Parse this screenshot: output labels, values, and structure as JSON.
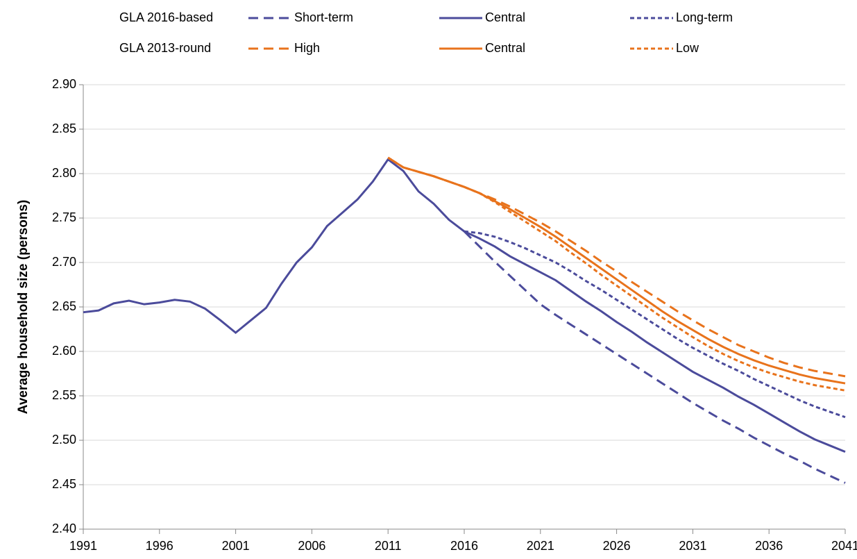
{
  "chart_data": {
    "type": "line",
    "y_label": "Average household size (persons)",
    "legend_groups": [
      "GLA 2016-based",
      "GLA 2013-round"
    ],
    "x": [
      1991,
      1992,
      1993,
      1994,
      1995,
      1996,
      1997,
      1998,
      1999,
      2000,
      2001,
      2002,
      2003,
      2004,
      2005,
      2006,
      2007,
      2008,
      2009,
      2010,
      2011,
      2012,
      2013,
      2014,
      2015,
      2016,
      2017,
      2018,
      2019,
      2020,
      2021,
      2022,
      2023,
      2024,
      2025,
      2026,
      2027,
      2028,
      2029,
      2030,
      2031,
      2032,
      2033,
      2034,
      2035,
      2036,
      2037,
      2038,
      2039,
      2040,
      2041
    ],
    "xlim": [
      1991,
      2041
    ],
    "xticks": [
      1991,
      1996,
      2001,
      2006,
      2011,
      2016,
      2021,
      2026,
      2031,
      2036,
      2041
    ],
    "ylim": [
      2.4,
      2.9
    ],
    "yticks": [
      {
        "value": 2.4,
        "label": "2.40"
      },
      {
        "value": 2.45,
        "label": "2.45"
      },
      {
        "value": 2.5,
        "label": "2.50"
      },
      {
        "value": 2.55,
        "label": "2.55"
      },
      {
        "value": 2.6,
        "label": "2.60"
      },
      {
        "value": 2.65,
        "label": "2.65"
      },
      {
        "value": 2.7,
        "label": "2.70"
      },
      {
        "value": 2.75,
        "label": "2.75"
      },
      {
        "value": 2.8,
        "label": "2.80"
      },
      {
        "value": 2.85,
        "label": "2.85"
      },
      {
        "value": 2.9,
        "label": "2.90"
      }
    ],
    "grid": true,
    "series": [
      {
        "name": "Short-term",
        "group": 0,
        "color": "#4b4b9b",
        "dash": "long",
        "values": [
          null,
          null,
          null,
          null,
          null,
          null,
          null,
          null,
          null,
          null,
          null,
          null,
          null,
          null,
          null,
          null,
          null,
          null,
          null,
          null,
          null,
          null,
          null,
          null,
          null,
          2.735,
          2.718,
          2.701,
          2.685,
          2.669,
          2.653,
          2.641,
          2.63,
          2.619,
          2.608,
          2.597,
          2.586,
          2.575,
          2.564,
          2.553,
          2.542,
          2.532,
          2.522,
          2.513,
          2.503,
          2.494,
          2.485,
          2.477,
          2.468,
          2.46,
          2.452
        ]
      },
      {
        "name": "Central",
        "group": 0,
        "color": "#4b4b9b",
        "dash": "solid",
        "values": [
          2.644,
          2.646,
          2.654,
          2.657,
          2.653,
          2.655,
          2.658,
          2.656,
          2.648,
          2.635,
          2.621,
          2.635,
          2.649,
          2.676,
          2.7,
          2.717,
          2.741,
          2.756,
          2.771,
          2.791,
          2.816,
          2.803,
          2.78,
          2.766,
          2.748,
          2.735,
          2.727,
          2.718,
          2.707,
          2.698,
          2.689,
          2.68,
          2.668,
          2.656,
          2.645,
          2.633,
          2.622,
          2.61,
          2.599,
          2.588,
          2.577,
          2.568,
          2.559,
          2.549,
          2.54,
          2.53,
          2.52,
          2.51,
          2.501,
          2.494,
          2.487
        ]
      },
      {
        "name": "Long-term",
        "group": 0,
        "color": "#4b4b9b",
        "dash": "short",
        "values": [
          null,
          null,
          null,
          null,
          null,
          null,
          null,
          null,
          null,
          null,
          null,
          null,
          null,
          null,
          null,
          null,
          null,
          null,
          null,
          null,
          null,
          null,
          null,
          null,
          null,
          2.735,
          2.733,
          2.729,
          2.723,
          2.716,
          2.708,
          2.7,
          2.69,
          2.679,
          2.669,
          2.658,
          2.647,
          2.636,
          2.625,
          2.614,
          2.604,
          2.595,
          2.586,
          2.578,
          2.569,
          2.561,
          2.553,
          2.545,
          2.538,
          2.532,
          2.526
        ]
      },
      {
        "name": "High",
        "group": 1,
        "color": "#e8731c",
        "dash": "long",
        "values": [
          null,
          null,
          null,
          null,
          null,
          null,
          null,
          null,
          null,
          null,
          null,
          null,
          null,
          null,
          null,
          null,
          null,
          null,
          null,
          null,
          2.818,
          2.807,
          2.802,
          2.797,
          2.791,
          2.785,
          2.778,
          2.771,
          2.763,
          2.754,
          2.745,
          2.735,
          2.724,
          2.713,
          2.701,
          2.69,
          2.678,
          2.667,
          2.656,
          2.645,
          2.635,
          2.625,
          2.616,
          2.607,
          2.6,
          2.593,
          2.587,
          2.582,
          2.578,
          2.575,
          2.572
        ]
      },
      {
        "name": "Central",
        "group": 1,
        "color": "#e8731c",
        "dash": "solid",
        "values": [
          null,
          null,
          null,
          null,
          null,
          null,
          null,
          null,
          null,
          null,
          null,
          null,
          null,
          null,
          null,
          null,
          null,
          null,
          null,
          null,
          2.818,
          2.807,
          2.802,
          2.797,
          2.791,
          2.785,
          2.778,
          2.769,
          2.76,
          2.75,
          2.74,
          2.729,
          2.717,
          2.705,
          2.693,
          2.681,
          2.669,
          2.657,
          2.645,
          2.634,
          2.624,
          2.614,
          2.605,
          2.597,
          2.59,
          2.584,
          2.579,
          2.574,
          2.57,
          2.567,
          2.564
        ]
      },
      {
        "name": "Low",
        "group": 1,
        "color": "#e8731c",
        "dash": "short",
        "values": [
          null,
          null,
          null,
          null,
          null,
          null,
          null,
          null,
          null,
          null,
          null,
          null,
          null,
          null,
          null,
          null,
          null,
          null,
          null,
          null,
          2.818,
          2.807,
          2.802,
          2.797,
          2.791,
          2.785,
          2.778,
          2.768,
          2.757,
          2.746,
          2.735,
          2.724,
          2.711,
          2.699,
          2.686,
          2.674,
          2.662,
          2.65,
          2.638,
          2.627,
          2.616,
          2.606,
          2.597,
          2.589,
          2.582,
          2.576,
          2.571,
          2.566,
          2.562,
          2.559,
          2.556
        ]
      }
    ]
  }
}
